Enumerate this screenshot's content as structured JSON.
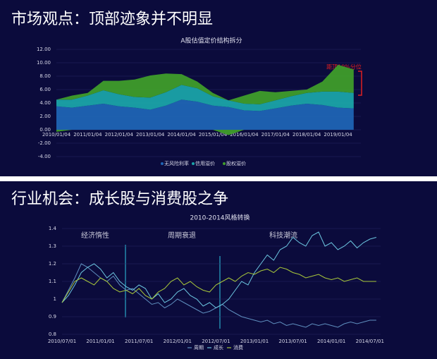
{
  "slides": [
    {
      "heading": "市场观点：顶部迹象并不明显"
    },
    {
      "heading": "行业机会：成长股与消费股之争"
    }
  ],
  "chart_data": [
    {
      "type": "area",
      "stacked": true,
      "title": "A股估值定价结构拆分",
      "categories": [
        "2010/01/04",
        null,
        "2011/01/04",
        null,
        "2012/01/04",
        null,
        "2013/01/04",
        null,
        "2014/01/04",
        null,
        "2015/01/04",
        null,
        "2016/01/04",
        null,
        "2017/01/04",
        null,
        "2018/01/04",
        null,
        "2019/01/04",
        null
      ],
      "series": [
        {
          "name": "无风险利率",
          "color": "#1f64b4",
          "values": [
            3.5,
            3.3,
            3.6,
            3.9,
            3.5,
            3.3,
            3.0,
            3.6,
            4.5,
            4.2,
            3.6,
            3.4,
            2.9,
            2.8,
            3.2,
            3.6,
            3.9,
            3.7,
            3.3,
            3.2
          ]
        },
        {
          "name": "信用溢价",
          "color": "#1aa3a8",
          "values": [
            1.0,
            1.2,
            1.5,
            2.0,
            1.8,
            1.6,
            1.8,
            2.0,
            2.2,
            2.0,
            1.4,
            1.0,
            1.0,
            1.0,
            1.2,
            1.4,
            1.6,
            2.0,
            2.4,
            2.3
          ]
        },
        {
          "name": "股权溢价",
          "color": "#3f9d2a",
          "values": [
            -0.3,
            0.6,
            0.4,
            1.4,
            2.0,
            2.6,
            3.3,
            2.8,
            1.6,
            1.0,
            0.5,
            -0.8,
            1.2,
            2.0,
            1.2,
            0.8,
            0.5,
            1.5,
            4.0,
            3.5
          ]
        }
      ],
      "ylim": [
        -4,
        12
      ],
      "yticks": [
        {
          "value": 12,
          "label": "12.00"
        },
        {
          "value": 10,
          "label": "10.00"
        },
        {
          "value": 8,
          "label": "8.00"
        },
        {
          "value": 6,
          "label": "6.00"
        },
        {
          "value": 4,
          "label": "4.00"
        },
        {
          "value": 2,
          "label": "2.00"
        },
        {
          "value": 0,
          "label": "0.00"
        },
        {
          "value": -2,
          "label": "-2.00"
        },
        {
          "value": -4,
          "label": "-4.00"
        }
      ],
      "grid": true,
      "legend": "bottom",
      "annotation": "距顶19%分位"
    },
    {
      "type": "line",
      "title": "2010-2014风格转换",
      "categories": [
        "2010/07/01",
        null,
        null,
        null,
        null,
        null,
        "2011/01/01",
        null,
        null,
        null,
        null,
        null,
        "2011/07/01",
        null,
        null,
        null,
        null,
        null,
        "2012/01/01",
        null,
        null,
        null,
        null,
        null,
        "2012/07/01",
        null,
        null,
        null,
        null,
        null,
        "2013/01/01",
        null,
        null,
        null,
        null,
        null,
        "2013/07/01",
        null,
        null,
        null,
        null,
        null,
        "2014/01/01",
        null,
        null,
        null,
        null,
        null,
        "2014/07/01",
        null
      ],
      "series": [
        {
          "name": "周期",
          "color": "#5f8fbf",
          "values": [
            0.98,
            1.05,
            1.12,
            1.2,
            1.18,
            1.15,
            1.12,
            1.1,
            1.13,
            1.08,
            1.05,
            1.06,
            1.03,
            1.0,
            0.97,
            0.98,
            0.95,
            0.97,
            1.0,
            0.98,
            0.96,
            0.94,
            0.92,
            0.93,
            0.95,
            0.97,
            0.94,
            0.92,
            0.9,
            0.89,
            0.88,
            0.87,
            0.88,
            0.86,
            0.87,
            0.85,
            0.86,
            0.85,
            0.84,
            0.86,
            0.85,
            0.86,
            0.85,
            0.84,
            0.86,
            0.87,
            0.86,
            0.87,
            0.88,
            0.88
          ]
        },
        {
          "name": "成长",
          "color": "#6cc6e0",
          "values": [
            0.98,
            1.02,
            1.08,
            1.15,
            1.18,
            1.2,
            1.17,
            1.12,
            1.15,
            1.1,
            1.07,
            1.05,
            1.08,
            1.06,
            1.0,
            1.03,
            0.98,
            1.0,
            1.04,
            1.06,
            1.02,
            1.0,
            0.96,
            0.98,
            0.95,
            0.97,
            1.0,
            1.05,
            1.1,
            1.08,
            1.15,
            1.2,
            1.25,
            1.22,
            1.28,
            1.3,
            1.35,
            1.32,
            1.3,
            1.36,
            1.38,
            1.3,
            1.32,
            1.28,
            1.3,
            1.33,
            1.29,
            1.32,
            1.34,
            1.35
          ]
        },
        {
          "name": "消费",
          "color": "#a9c83a",
          "values": [
            0.98,
            1.04,
            1.1,
            1.12,
            1.1,
            1.08,
            1.12,
            1.1,
            1.06,
            1.04,
            1.05,
            1.03,
            1.06,
            1.02,
            1.0,
            1.04,
            1.06,
            1.1,
            1.12,
            1.08,
            1.1,
            1.07,
            1.05,
            1.04,
            1.08,
            1.1,
            1.12,
            1.1,
            1.13,
            1.15,
            1.14,
            1.16,
            1.17,
            1.15,
            1.18,
            1.17,
            1.15,
            1.14,
            1.12,
            1.13,
            1.14,
            1.12,
            1.11,
            1.12,
            1.1,
            1.11,
            1.12,
            1.1,
            1.1,
            1.1
          ]
        }
      ],
      "ylim": [
        0.8,
        1.4
      ],
      "yticks": [
        1.4,
        1.3,
        1.2,
        1.1,
        1,
        0.9,
        0.8
      ],
      "grid": true,
      "legend": "bottom",
      "annotations": [
        "经济惰性",
        "周期衰退",
        "科技潮流"
      ]
    }
  ]
}
